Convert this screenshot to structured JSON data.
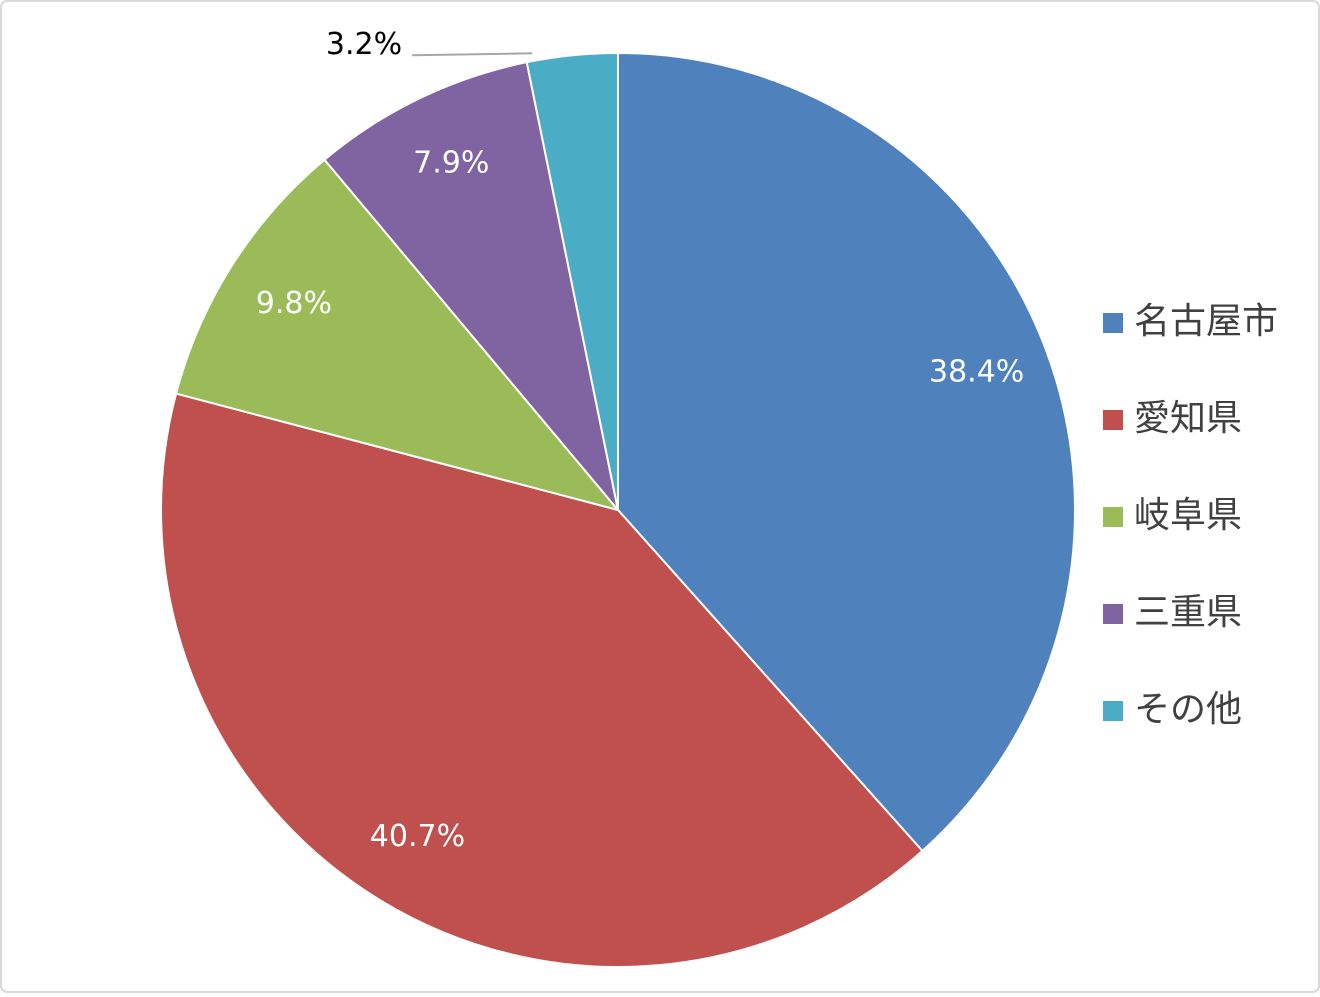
{
  "chart_data": {
    "type": "pie",
    "categories": [
      "名古屋市",
      "愛知県",
      "岐阜県",
      "三重県",
      "その他"
    ],
    "values": [
      38.4,
      40.7,
      9.8,
      7.9,
      3.2
    ],
    "value_labels": [
      "38.4%",
      "40.7%",
      "9.8%",
      "7.9%",
      "3.2%"
    ],
    "colors": [
      "#4f81bd",
      "#c0504d",
      "#9bbb59",
      "#8064a2",
      "#4bacc6"
    ],
    "legend": "right"
  }
}
